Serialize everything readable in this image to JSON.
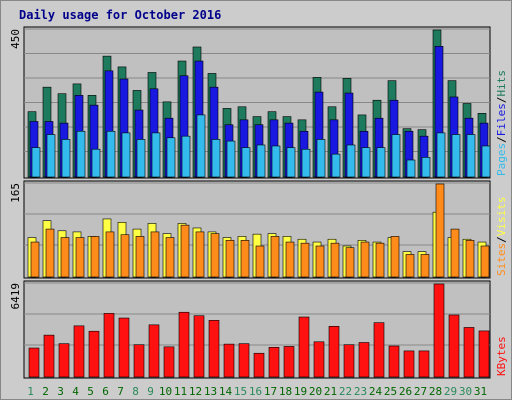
{
  "title": "Daily usage for October 2016",
  "colors": {
    "hits": "#1d7a5c",
    "files": "#1818e0",
    "pages": "#33bbee",
    "visits": "#ffff44",
    "sites": "#ff8c1a",
    "kbytes": "#ff1111",
    "weekday_label": "#006600",
    "weekend_label": "#2a8a5a",
    "title": "#00008b"
  },
  "chart_data": [
    {
      "type": "bar",
      "panel": "hits-files-pages",
      "axis_max_label": "450",
      "ylim": [
        0,
        450
      ],
      "categories": [
        "1",
        "2",
        "3",
        "4",
        "5",
        "6",
        "7",
        "8",
        "9",
        "10",
        "11",
        "12",
        "13",
        "14",
        "15",
        "16",
        "17",
        "18",
        "19",
        "20",
        "21",
        "22",
        "23",
        "24",
        "25",
        "26",
        "27",
        "28",
        "29",
        "30",
        "31"
      ],
      "legend": [
        "Pages",
        "Files",
        "Hits"
      ],
      "series": [
        {
          "name": "Hits",
          "values": [
            200,
            275,
            255,
            285,
            250,
            370,
            337,
            265,
            320,
            230,
            355,
            398,
            317,
            210,
            215,
            185,
            200,
            185,
            175,
            305,
            215,
            302,
            190,
            235,
            295,
            148,
            145,
            450,
            295,
            225,
            195
          ]
        },
        {
          "name": "Files",
          "values": [
            170,
            170,
            165,
            250,
            220,
            325,
            300,
            205,
            270,
            180,
            310,
            355,
            275,
            160,
            175,
            160,
            175,
            165,
            140,
            260,
            175,
            257,
            140,
            180,
            235,
            140,
            125,
            400,
            245,
            180,
            165
          ]
        },
        {
          "name": "Pages",
          "values": [
            90,
            130,
            115,
            140,
            85,
            140,
            135,
            115,
            135,
            120,
            125,
            190,
            115,
            110,
            90,
            98,
            95,
            90,
            85,
            115,
            70,
            98,
            90,
            90,
            130,
            52,
            60,
            135,
            130,
            130,
            95
          ]
        }
      ]
    },
    {
      "type": "bar",
      "panel": "visits-sites",
      "axis_max_label": "165",
      "ylim": [
        0,
        165
      ],
      "categories": [
        "1",
        "2",
        "3",
        "4",
        "5",
        "6",
        "7",
        "8",
        "9",
        "10",
        "11",
        "12",
        "13",
        "14",
        "15",
        "16",
        "17",
        "18",
        "19",
        "20",
        "21",
        "22",
        "23",
        "24",
        "25",
        "26",
        "27",
        "28",
        "29",
        "30",
        "31"
      ],
      "legend": [
        "Sites",
        "Visits"
      ],
      "series": [
        {
          "name": "Visits",
          "values": [
            70,
            100,
            82,
            80,
            72,
            103,
            97,
            85,
            95,
            77,
            95,
            87,
            80,
            70,
            72,
            76,
            77,
            72,
            67,
            62,
            67,
            55,
            65,
            62,
            70,
            45,
            45,
            115,
            70,
            67,
            62
          ]
        },
        {
          "name": "Sites",
          "values": [
            62,
            85,
            70,
            70,
            72,
            80,
            75,
            72,
            80,
            70,
            92,
            80,
            77,
            65,
            65,
            55,
            72,
            62,
            60,
            55,
            60,
            52,
            62,
            60,
            72,
            40,
            40,
            165,
            85,
            65,
            55
          ]
        }
      ]
    },
    {
      "type": "bar",
      "panel": "kbytes",
      "axis_max_label": "6419",
      "ylim": [
        0,
        6419
      ],
      "categories": [
        "1",
        "2",
        "3",
        "4",
        "5",
        "6",
        "7",
        "8",
        "9",
        "10",
        "11",
        "12",
        "13",
        "14",
        "15",
        "16",
        "17",
        "18",
        "19",
        "20",
        "21",
        "22",
        "23",
        "24",
        "25",
        "26",
        "27",
        "28",
        "29",
        "30",
        "31"
      ],
      "legend": [
        "KBytes"
      ],
      "series": [
        {
          "name": "KBytes",
          "values": [
            2000,
            2890,
            2300,
            3530,
            3160,
            4390,
            4070,
            2230,
            3600,
            2080,
            4470,
            4230,
            3910,
            2270,
            2300,
            1640,
            2050,
            2110,
            4140,
            2430,
            3500,
            2230,
            2380,
            3750,
            2140,
            1800,
            1800,
            6419,
            4280,
            3420,
            3180
          ]
        }
      ]
    }
  ]
}
